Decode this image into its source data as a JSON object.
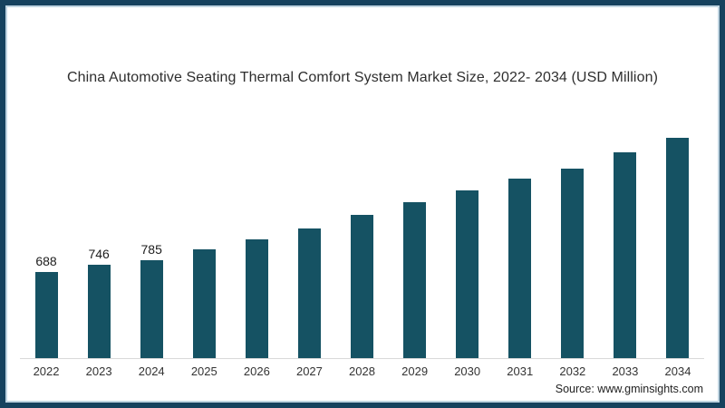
{
  "title": "China Automotive Seating Thermal Comfort System Market Size, 2022- 2034 (USD Million)",
  "source": "Source: www.gminsights.com",
  "colors": {
    "bar": "#155263",
    "frame_border": "#16425e",
    "frame_inner_line": "#bfd4e1",
    "axis_line": "#d9d9d9",
    "title_text": "#2e2e2e",
    "label_text": "#1c1c1c"
  },
  "chart_data": {
    "type": "bar",
    "title": "China Automotive Seating Thermal Comfort System Market Size, 2022- 2034 (USD Million)",
    "xlabel": "",
    "ylabel": "",
    "categories": [
      "2022",
      "2023",
      "2024",
      "2025",
      "2026",
      "2027",
      "2028",
      "2029",
      "2030",
      "2031",
      "2032",
      "2033",
      "2034"
    ],
    "values": [
      688,
      746,
      785,
      870,
      950,
      1040,
      1145,
      1245,
      1340,
      1435,
      1520,
      1650,
      1765
    ],
    "data_labels": [
      "688",
      "746",
      "785",
      "",
      "",
      "",
      "",
      "",
      "",
      "",
      "",
      "",
      ""
    ],
    "ylim": [
      0,
      1960
    ],
    "grid": false,
    "legend": false
  }
}
